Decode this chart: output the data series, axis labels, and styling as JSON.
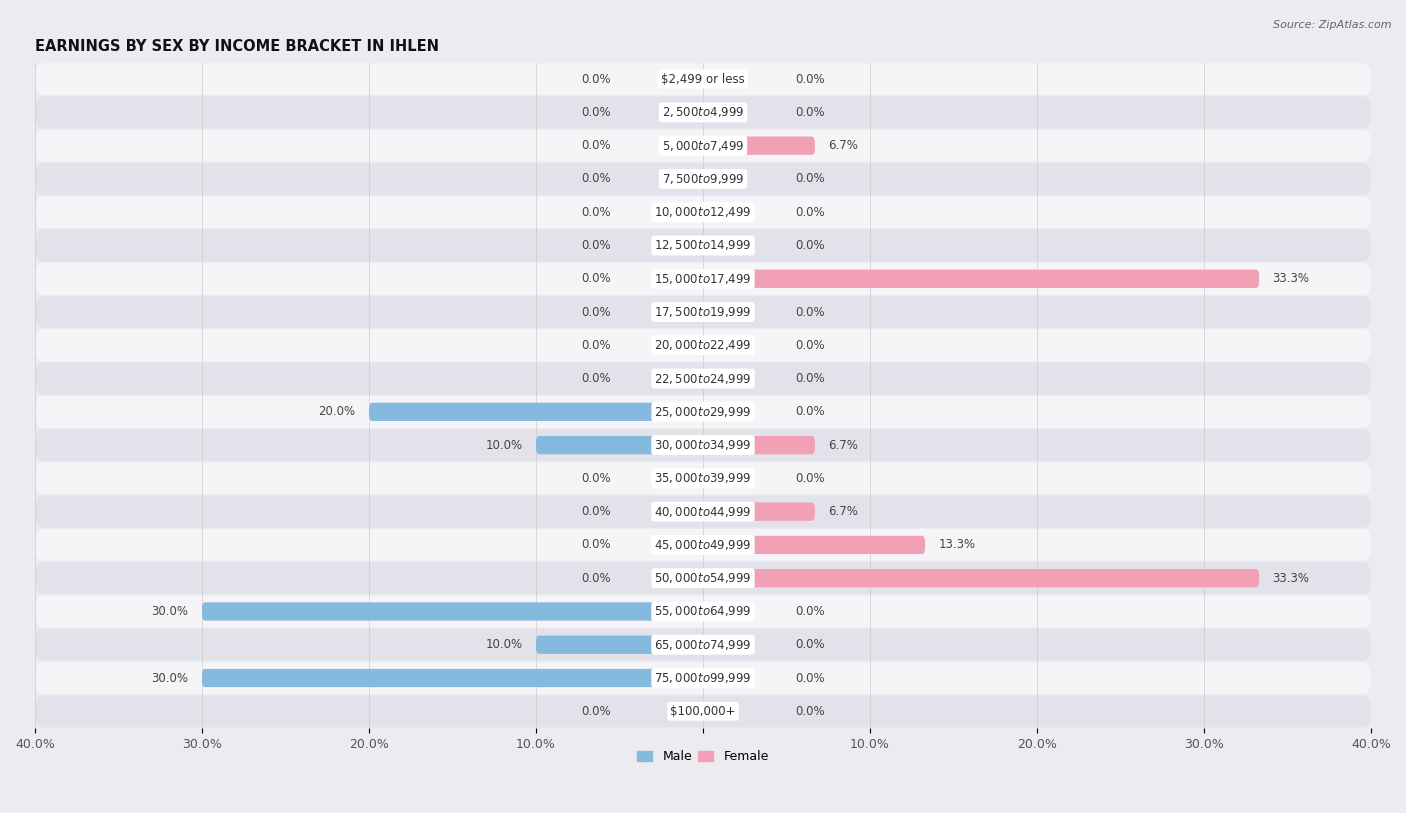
{
  "title": "EARNINGS BY SEX BY INCOME BRACKET IN IHLEN",
  "source": "Source: ZipAtlas.com",
  "categories": [
    "$2,499 or less",
    "$2,500 to $4,999",
    "$5,000 to $7,499",
    "$7,500 to $9,999",
    "$10,000 to $12,499",
    "$12,500 to $14,999",
    "$15,000 to $17,499",
    "$17,500 to $19,999",
    "$20,000 to $22,499",
    "$22,500 to $24,999",
    "$25,000 to $29,999",
    "$30,000 to $34,999",
    "$35,000 to $39,999",
    "$40,000 to $44,999",
    "$45,000 to $49,999",
    "$50,000 to $54,999",
    "$55,000 to $64,999",
    "$65,000 to $74,999",
    "$75,000 to $99,999",
    "$100,000+"
  ],
  "male_values": [
    0.0,
    0.0,
    0.0,
    0.0,
    0.0,
    0.0,
    0.0,
    0.0,
    0.0,
    0.0,
    20.0,
    10.0,
    0.0,
    0.0,
    0.0,
    0.0,
    30.0,
    10.0,
    30.0,
    0.0
  ],
  "female_values": [
    0.0,
    0.0,
    6.7,
    0.0,
    0.0,
    0.0,
    33.3,
    0.0,
    0.0,
    0.0,
    0.0,
    6.7,
    0.0,
    6.7,
    13.3,
    33.3,
    0.0,
    0.0,
    0.0,
    0.0
  ],
  "male_color": "#85bade",
  "female_color": "#f2a0b5",
  "xlim": 40.0,
  "bar_height": 0.55,
  "bg_color": "#ebebf0",
  "row_color_odd": "#f5f5f8",
  "row_color_even": "#e2e2ea",
  "title_fontsize": 10.5,
  "label_fontsize": 8.5,
  "value_fontsize": 8.5,
  "axis_fontsize": 9,
  "source_fontsize": 8
}
